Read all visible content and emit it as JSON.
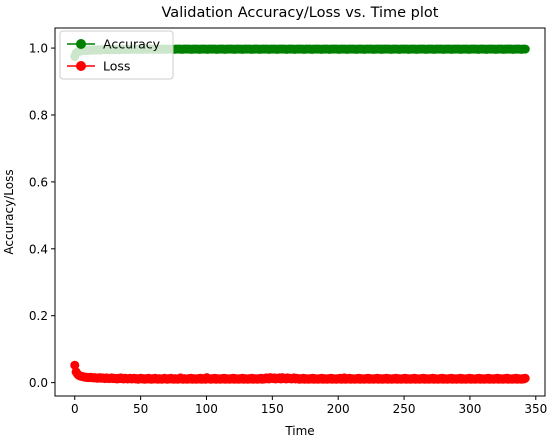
{
  "chart_data": {
    "type": "line",
    "title": "Validation Accuracy/Loss vs. Time plot",
    "xlabel": "Time",
    "ylabel": "Accuracy/Loss",
    "xlim": [
      -15,
      357
    ],
    "ylim": [
      -0.04,
      1.06
    ],
    "xticks": [
      0,
      50,
      100,
      150,
      200,
      250,
      300,
      350
    ],
    "yticks": [
      0.0,
      0.2,
      0.4,
      0.6,
      0.8,
      1.0
    ],
    "grid": false,
    "legend_position": "top-left",
    "x_start": 0,
    "x_end": 342,
    "series": [
      {
        "name": "Accuracy",
        "color": "#008000",
        "marker": "circle",
        "values": [
          0.975,
          0.985,
          0.988,
          0.99,
          0.991,
          0.992,
          0.992,
          0.993,
          0.993,
          0.993,
          0.994,
          0.994,
          0.993,
          0.994,
          0.994,
          0.995,
          0.994,
          0.995,
          0.995,
          0.994,
          0.995,
          0.995,
          0.996,
          0.995,
          0.995,
          0.996,
          0.995,
          0.996,
          0.996,
          0.995,
          0.996,
          0.996,
          0.996,
          0.995,
          0.996,
          0.996,
          0.997,
          0.996,
          0.996,
          0.997,
          0.996,
          0.996,
          0.997,
          0.997,
          0.996,
          0.997,
          0.997,
          0.996,
          0.997,
          0.997,
          0.996,
          0.997,
          0.997,
          0.997,
          0.996,
          0.997,
          0.997,
          0.997,
          0.997,
          0.996,
          0.997,
          0.997,
          0.997,
          0.996,
          0.997,
          0.997,
          0.997,
          0.997,
          0.996,
          0.997,
          0.997,
          0.997,
          0.997,
          0.997,
          0.996,
          0.997,
          0.997,
          0.997,
          0.997,
          0.997,
          0.996,
          0.997,
          0.997,
          0.997,
          0.997,
          0.997,
          0.997,
          0.996,
          0.997,
          0.997,
          0.997,
          0.997,
          0.997,
          0.996,
          0.997,
          0.997,
          0.997,
          0.997,
          0.997,
          0.996,
          0.997,
          0.997,
          0.997,
          0.997,
          0.997,
          0.997,
          0.996,
          0.997,
          0.997,
          0.997,
          0.997,
          0.997,
          0.996,
          0.997,
          0.997,
          0.997,
          0.997,
          0.997,
          0.997,
          0.996,
          0.997,
          0.997,
          0.997,
          0.997,
          0.997,
          0.996,
          0.997,
          0.997,
          0.997,
          0.997,
          0.997,
          0.997,
          0.996,
          0.997,
          0.997,
          0.997,
          0.997,
          0.997,
          0.996,
          0.997,
          0.997,
          0.997,
          0.997,
          0.997,
          0.997,
          0.996,
          0.997,
          0.997,
          0.997,
          0.997,
          0.997,
          0.996,
          0.997,
          0.997,
          0.997,
          0.997,
          0.997,
          0.997,
          0.996,
          0.997,
          0.997,
          0.997,
          0.997,
          0.997,
          0.996,
          0.997,
          0.997,
          0.997,
          0.997,
          0.997,
          0.997,
          0.996,
          0.997,
          0.997,
          0.997,
          0.997,
          0.997,
          0.996,
          0.997,
          0.997,
          0.997,
          0.997,
          0.997,
          0.997,
          0.996,
          0.997,
          0.997,
          0.997,
          0.997,
          0.997,
          0.996,
          0.997,
          0.997,
          0.997,
          0.997,
          0.997,
          0.997,
          0.996,
          0.997,
          0.997,
          0.997,
          0.997,
          0.997,
          0.996,
          0.997,
          0.997,
          0.997,
          0.997,
          0.997,
          0.997,
          0.996,
          0.997,
          0.997,
          0.997,
          0.997,
          0.997,
          0.996,
          0.997,
          0.997,
          0.997,
          0.997,
          0.997,
          0.997,
          0.996,
          0.997,
          0.997,
          0.997,
          0.997,
          0.997,
          0.996,
          0.997,
          0.997,
          0.997,
          0.997,
          0.997,
          0.997,
          0.996,
          0.997,
          0.997,
          0.997,
          0.997,
          0.997,
          0.996,
          0.997,
          0.997,
          0.997,
          0.997,
          0.997,
          0.997,
          0.996,
          0.997,
          0.997,
          0.997,
          0.997,
          0.997,
          0.996,
          0.997,
          0.997,
          0.997,
          0.997,
          0.997,
          0.997,
          0.996,
          0.997,
          0.997,
          0.997,
          0.997,
          0.997,
          0.996,
          0.997,
          0.997,
          0.997,
          0.997,
          0.997,
          0.997,
          0.996,
          0.997,
          0.997,
          0.997,
          0.997,
          0.997,
          0.996,
          0.997,
          0.997,
          0.997,
          0.997,
          0.997,
          0.997,
          0.996,
          0.997,
          0.997,
          0.997,
          0.997,
          0.997,
          0.996,
          0.997,
          0.997,
          0.997,
          0.997,
          0.997,
          0.997,
          0.996,
          0.997,
          0.997,
          0.997,
          0.997,
          0.997,
          0.996,
          0.997,
          0.997,
          0.997,
          0.997,
          0.997,
          0.997,
          0.996,
          0.997,
          0.997,
          0.997,
          0.997,
          0.997,
          0.996,
          0.997,
          0.997,
          0.997,
          0.997,
          0.997,
          0.997,
          0.996,
          0.997,
          0.997,
          0.997,
          0.997,
          0.997,
          0.996,
          0.997,
          0.997,
          0.997
        ]
      },
      {
        "name": "Loss",
        "color": "#ff0000",
        "marker": "circle",
        "values": [
          0.052,
          0.032,
          0.026,
          0.022,
          0.02,
          0.019,
          0.018,
          0.017,
          0.016,
          0.016,
          0.015,
          0.015,
          0.016,
          0.015,
          0.014,
          0.015,
          0.014,
          0.013,
          0.014,
          0.015,
          0.013,
          0.014,
          0.013,
          0.012,
          0.014,
          0.013,
          0.012,
          0.013,
          0.014,
          0.012,
          0.013,
          0.012,
          0.011,
          0.013,
          0.012,
          0.014,
          0.012,
          0.011,
          0.013,
          0.012,
          0.011,
          0.012,
          0.013,
          0.011,
          0.012,
          0.013,
          0.011,
          0.012,
          0.01,
          0.012,
          0.013,
          0.011,
          0.012,
          0.01,
          0.012,
          0.011,
          0.013,
          0.011,
          0.01,
          0.012,
          0.011,
          0.013,
          0.011,
          0.01,
          0.012,
          0.011,
          0.01,
          0.012,
          0.013,
          0.011,
          0.01,
          0.012,
          0.011,
          0.013,
          0.011,
          0.01,
          0.012,
          0.011,
          0.01,
          0.012,
          0.014,
          0.011,
          0.01,
          0.012,
          0.011,
          0.01,
          0.012,
          0.011,
          0.013,
          0.01,
          0.012,
          0.011,
          0.01,
          0.012,
          0.011,
          0.013,
          0.01,
          0.012,
          0.011,
          0.01,
          0.015,
          0.012,
          0.011,
          0.01,
          0.012,
          0.011,
          0.013,
          0.01,
          0.012,
          0.011,
          0.01,
          0.012,
          0.011,
          0.013,
          0.01,
          0.012,
          0.011,
          0.01,
          0.012,
          0.011,
          0.013,
          0.01,
          0.012,
          0.011,
          0.01,
          0.012,
          0.011,
          0.013,
          0.01,
          0.012,
          0.011,
          0.01,
          0.012,
          0.011,
          0.013,
          0.01,
          0.012,
          0.011,
          0.01,
          0.012,
          0.011,
          0.013,
          0.01,
          0.012,
          0.011,
          0.014,
          0.012,
          0.011,
          0.015,
          0.013,
          0.012,
          0.014,
          0.011,
          0.013,
          0.012,
          0.014,
          0.011,
          0.015,
          0.012,
          0.013,
          0.011,
          0.014,
          0.012,
          0.013,
          0.011,
          0.012,
          0.014,
          0.011,
          0.013,
          0.012,
          0.01,
          0.012,
          0.011,
          0.013,
          0.01,
          0.012,
          0.011,
          0.01,
          0.012,
          0.011,
          0.013,
          0.01,
          0.012,
          0.011,
          0.01,
          0.012,
          0.011,
          0.013,
          0.01,
          0.012,
          0.011,
          0.01,
          0.012,
          0.011,
          0.013,
          0.01,
          0.012,
          0.011,
          0.01,
          0.012,
          0.011,
          0.013,
          0.01,
          0.012,
          0.014,
          0.01,
          0.012,
          0.011,
          0.013,
          0.01,
          0.012,
          0.011,
          0.01,
          0.012,
          0.011,
          0.013,
          0.01,
          0.012,
          0.011,
          0.01,
          0.012,
          0.011,
          0.013,
          0.01,
          0.012,
          0.011,
          0.01,
          0.012,
          0.011,
          0.013,
          0.01,
          0.012,
          0.011,
          0.01,
          0.012,
          0.011,
          0.013,
          0.01,
          0.012,
          0.011,
          0.01,
          0.012,
          0.011,
          0.013,
          0.01,
          0.012,
          0.011,
          0.01,
          0.012,
          0.011,
          0.013,
          0.01,
          0.012,
          0.011,
          0.01,
          0.012,
          0.011,
          0.013,
          0.01,
          0.012,
          0.011,
          0.01,
          0.012,
          0.011,
          0.013,
          0.01,
          0.012,
          0.011,
          0.01,
          0.012,
          0.011,
          0.013,
          0.01,
          0.012,
          0.011,
          0.01,
          0.012,
          0.011,
          0.013,
          0.01,
          0.012,
          0.011,
          0.01,
          0.012,
          0.011,
          0.013,
          0.01,
          0.012,
          0.011,
          0.01,
          0.012,
          0.011,
          0.013,
          0.01,
          0.012,
          0.011,
          0.01,
          0.012,
          0.011,
          0.013,
          0.01,
          0.012,
          0.011,
          0.01,
          0.012,
          0.011,
          0.013,
          0.01,
          0.012,
          0.011,
          0.01,
          0.012,
          0.011,
          0.013,
          0.01,
          0.012,
          0.011,
          0.01,
          0.012,
          0.011,
          0.013,
          0.01,
          0.012,
          0.011,
          0.01,
          0.012,
          0.011,
          0.013,
          0.01,
          0.012,
          0.011,
          0.01,
          0.012,
          0.011,
          0.013,
          0.01,
          0.012,
          0.011,
          0.01,
          0.012,
          0.011,
          0.013
        ]
      }
    ]
  }
}
